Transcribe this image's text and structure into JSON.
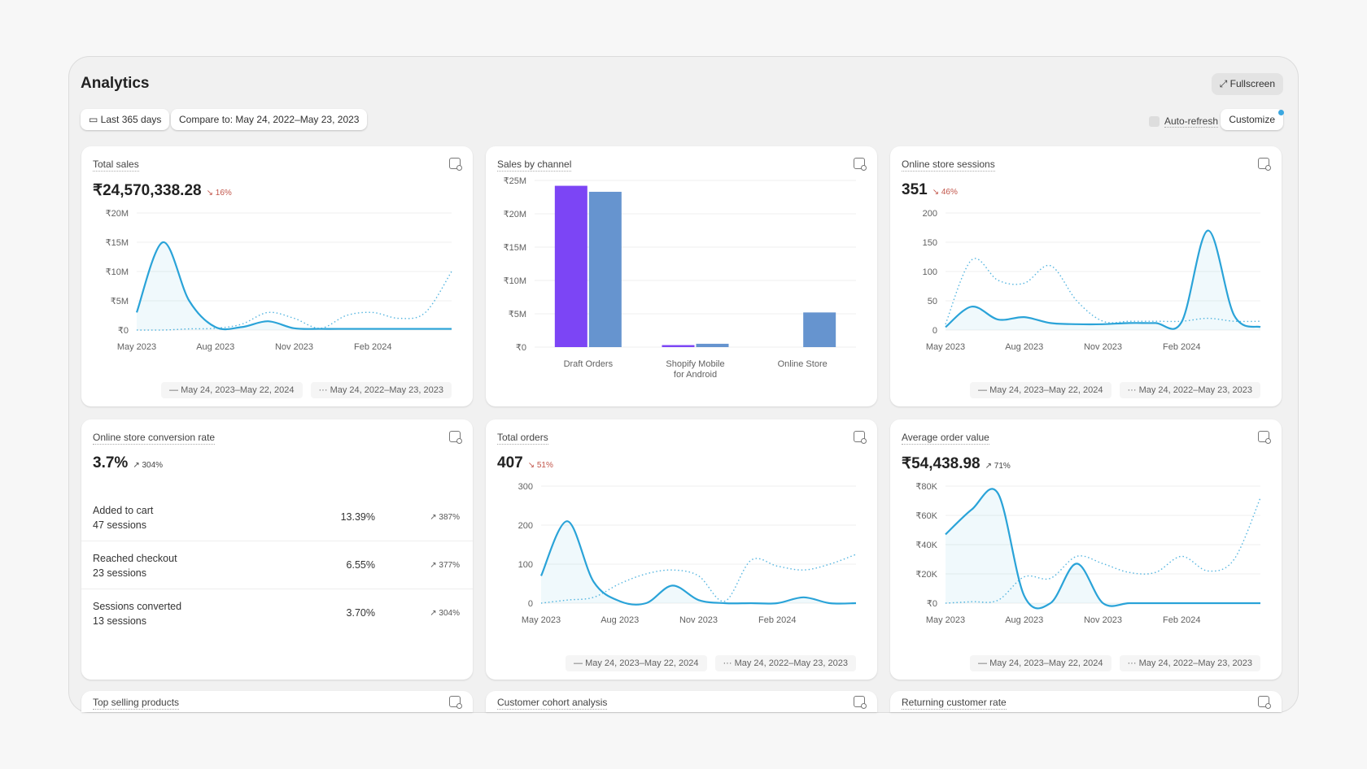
{
  "header": {
    "title": "Analytics",
    "fullscreen": "Fullscreen",
    "date_range": "Last 365 days",
    "compare": "Compare to: May 24, 2022–May 23, 2023",
    "auto_refresh": "Auto-refresh",
    "customize": "Customize"
  },
  "legend": {
    "current": "May 24, 2023–May 22, 2024",
    "previous": "May 24, 2022–May 23, 2023"
  },
  "colors": {
    "line": "#2aa3d8",
    "bar_current": "#7c45f5",
    "bar_previous": "#6694cf",
    "decrease": "#c2554a"
  },
  "cards": {
    "total_sales": {
      "title": "Total sales",
      "value": "₹24,570,338.28",
      "change": "16%",
      "direction": "down"
    },
    "sales_by_channel": {
      "title": "Sales by channel"
    },
    "sessions": {
      "title": "Online store sessions",
      "value": "351",
      "change": "46%",
      "direction": "down"
    },
    "conversion": {
      "title": "Online store conversion rate",
      "value": "3.7%",
      "change": "304%",
      "direction": "up",
      "rows": [
        {
          "label": "Added to cart",
          "sessions": "47 sessions",
          "pct": "13.39%",
          "change": "387%"
        },
        {
          "label": "Reached checkout",
          "sessions": "23 sessions",
          "pct": "6.55%",
          "change": "377%"
        },
        {
          "label": "Sessions converted",
          "sessions": "13 sessions",
          "pct": "3.70%",
          "change": "304%"
        }
      ]
    },
    "orders": {
      "title": "Total orders",
      "value": "407",
      "change": "51%",
      "direction": "down"
    },
    "aov": {
      "title": "Average order value",
      "value": "₹54,438.98",
      "change": "71%",
      "direction": "up"
    },
    "top_products": {
      "title": "Top selling products"
    },
    "cohort": {
      "title": "Customer cohort analysis"
    },
    "returning": {
      "title": "Returning customer rate"
    }
  },
  "chart_data": [
    {
      "id": "total_sales",
      "type": "line",
      "x": [
        "2023-05",
        "2023-06",
        "2023-07",
        "2023-08",
        "2023-09",
        "2023-10",
        "2023-11",
        "2023-12",
        "2024-01",
        "2024-02",
        "2024-03",
        "2024-04",
        "2024-05"
      ],
      "xticks": [
        "May 2023",
        "Aug 2023",
        "Nov 2023",
        "Feb 2024"
      ],
      "yticks": [
        "₹0",
        "₹5M",
        "₹10M",
        "₹15M",
        "₹20M"
      ],
      "ylim": [
        0,
        20000000
      ],
      "series": [
        {
          "name": "May 24, 2023–May 22, 2024",
          "values": [
            3000000,
            15000000,
            5000000,
            500000,
            500000,
            1500000,
            300000,
            200000,
            200000,
            200000,
            200000,
            200000,
            200000
          ]
        },
        {
          "name": "May 24, 2022–May 23, 2023",
          "values": [
            0,
            0,
            200000,
            300000,
            1000000,
            3000000,
            2000000,
            300000,
            2500000,
            3000000,
            2000000,
            3000000,
            10000000
          ]
        }
      ]
    },
    {
      "id": "sales_by_channel",
      "type": "bar",
      "categories": [
        "Draft Orders",
        "Shopify Mobile for Android",
        "Online Store"
      ],
      "yticks": [
        "₹0",
        "₹5M",
        "₹10M",
        "₹15M",
        "₹20M",
        "₹25M"
      ],
      "ylim": [
        0,
        25000000
      ],
      "series": [
        {
          "values": [
            24200000,
            300000,
            0
          ]
        },
        {
          "values": [
            23300000,
            500000,
            5200000
          ]
        }
      ]
    },
    {
      "id": "sessions",
      "type": "line",
      "xticks": [
        "May 2023",
        "Aug 2023",
        "Nov 2023",
        "Feb 2024"
      ],
      "yticks": [
        "0",
        "50",
        "100",
        "150",
        "200"
      ],
      "ylim": [
        0,
        200
      ],
      "series": [
        {
          "name": "May 24, 2023–May 22, 2024",
          "values": [
            5,
            40,
            18,
            22,
            12,
            10,
            10,
            12,
            12,
            14,
            170,
            25,
            5
          ]
        },
        {
          "name": "May 24, 2022–May 23, 2023",
          "values": [
            10,
            120,
            85,
            80,
            110,
            50,
            15,
            15,
            15,
            15,
            20,
            15,
            15
          ]
        }
      ]
    },
    {
      "id": "orders",
      "type": "line",
      "xticks": [
        "May 2023",
        "Aug 2023",
        "Nov 2023",
        "Feb 2024"
      ],
      "yticks": [
        "0",
        "100",
        "200",
        "300"
      ],
      "ylim": [
        0,
        300
      ],
      "series": [
        {
          "name": "May 24, 2023–May 22, 2024",
          "values": [
            70,
            210,
            55,
            5,
            0,
            45,
            8,
            0,
            0,
            0,
            15,
            0,
            0
          ]
        },
        {
          "name": "May 24, 2022–May 23, 2023",
          "values": [
            0,
            8,
            15,
            50,
            75,
            85,
            70,
            5,
            110,
            95,
            85,
            100,
            125
          ]
        }
      ]
    },
    {
      "id": "aov",
      "type": "line",
      "xticks": [
        "May 2023",
        "Aug 2023",
        "Nov 2023",
        "Feb 2024"
      ],
      "yticks": [
        "₹0",
        "₹20K",
        "₹40K",
        "₹60K",
        "₹80K"
      ],
      "ylim": [
        0,
        80000
      ],
      "series": [
        {
          "name": "May 24, 2023–May 22, 2024",
          "values": [
            47000,
            64000,
            75000,
            5000,
            0,
            27000,
            0,
            0,
            0,
            0,
            0,
            0,
            0
          ]
        },
        {
          "name": "May 24, 2022–May 23, 2023",
          "values": [
            0,
            1000,
            2000,
            18000,
            17000,
            32000,
            27000,
            21000,
            21000,
            32000,
            22000,
            30000,
            72000
          ]
        }
      ]
    }
  ]
}
